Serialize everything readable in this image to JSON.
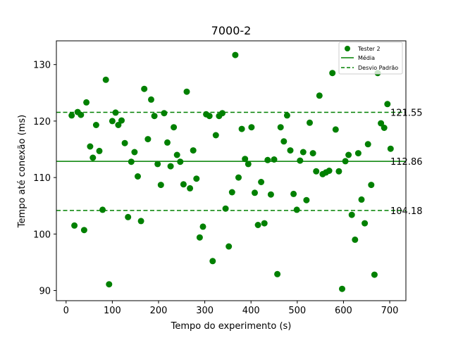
{
  "chart_data": {
    "type": "scatter",
    "title": "7000-2",
    "xlabel": "Tempo do experimento (s)",
    "ylabel": "Tempo até conexão (ms)",
    "xlim": [
      -21,
      735
    ],
    "ylim": [
      88.2,
      134.2
    ],
    "xticks": [
      0,
      100,
      200,
      300,
      400,
      500,
      600,
      700
    ],
    "yticks": [
      90,
      100,
      110,
      120,
      130
    ],
    "grid": false,
    "legend_position": "top-right",
    "colors": {
      "points": "#008000",
      "mean": "#008000",
      "std": "#008000"
    },
    "legend": [
      {
        "label": "Tester 2",
        "kind": "marker"
      },
      {
        "label": "Média",
        "kind": "line"
      },
      {
        "label": "Desvio Padrão",
        "kind": "dashed"
      }
    ],
    "reference_lines": [
      {
        "name": "upper",
        "value": 121.55,
        "label": "121.55",
        "style": "dashed"
      },
      {
        "name": "mean",
        "value": 112.86,
        "label": "112.86",
        "style": "solid"
      },
      {
        "name": "lower",
        "value": 104.18,
        "label": "104.18",
        "style": "dashed"
      }
    ],
    "series": [
      {
        "name": "Tester 2",
        "points": [
          [
            12,
            121.0
          ],
          [
            18,
            101.5
          ],
          [
            25,
            121.6
          ],
          [
            32,
            121.1
          ],
          [
            39,
            100.7
          ],
          [
            44,
            123.3
          ],
          [
            52,
            115.5
          ],
          [
            58,
            113.5
          ],
          [
            65,
            119.3
          ],
          [
            72,
            114.7
          ],
          [
            79,
            104.3
          ],
          [
            86,
            127.3
          ],
          [
            93,
            91.1
          ],
          [
            100,
            120.0
          ],
          [
            107,
            121.5
          ],
          [
            113,
            119.3
          ],
          [
            120,
            120.1
          ],
          [
            127,
            116.1
          ],
          [
            134,
            103.0
          ],
          [
            141,
            112.8
          ],
          [
            148,
            114.5
          ],
          [
            155,
            110.2
          ],
          [
            162,
            102.3
          ],
          [
            169,
            125.7
          ],
          [
            177,
            116.8
          ],
          [
            184,
            123.8
          ],
          [
            191,
            120.9
          ],
          [
            198,
            112.4
          ],
          [
            205,
            108.7
          ],
          [
            212,
            121.4
          ],
          [
            219,
            116.2
          ],
          [
            226,
            112.0
          ],
          [
            233,
            118.9
          ],
          [
            240,
            114.0
          ],
          [
            247,
            112.8
          ],
          [
            254,
            108.8
          ],
          [
            261,
            125.2
          ],
          [
            268,
            108.1
          ],
          [
            275,
            114.8
          ],
          [
            282,
            109.8
          ],
          [
            289,
            99.4
          ],
          [
            296,
            101.3
          ],
          [
            303,
            121.2
          ],
          [
            310,
            120.9
          ],
          [
            317,
            95.2
          ],
          [
            324,
            117.5
          ],
          [
            331,
            120.9
          ],
          [
            338,
            121.4
          ],
          [
            345,
            104.5
          ],
          [
            352,
            97.8
          ],
          [
            359,
            107.4
          ],
          [
            366,
            131.7
          ],
          [
            373,
            110.0
          ],
          [
            380,
            118.6
          ],
          [
            387,
            113.3
          ],
          [
            394,
            112.4
          ],
          [
            401,
            118.9
          ],
          [
            408,
            107.3
          ],
          [
            415,
            101.6
          ],
          [
            422,
            109.2
          ],
          [
            429,
            101.9
          ],
          [
            436,
            113.1
          ],
          [
            443,
            107.0
          ],
          [
            450,
            113.2
          ],
          [
            457,
            92.9
          ],
          [
            464,
            118.9
          ],
          [
            471,
            116.4
          ],
          [
            478,
            121.0
          ],
          [
            485,
            114.8
          ],
          [
            492,
            107.1
          ],
          [
            499,
            104.3
          ],
          [
            506,
            113.0
          ],
          [
            513,
            114.5
          ],
          [
            520,
            106.0
          ],
          [
            527,
            119.7
          ],
          [
            534,
            114.3
          ],
          [
            541,
            111.1
          ],
          [
            548,
            124.5
          ],
          [
            555,
            110.6
          ],
          [
            562,
            110.9
          ],
          [
            569,
            111.2
          ],
          [
            576,
            128.5
          ],
          [
            583,
            118.5
          ],
          [
            590,
            111.1
          ],
          [
            597,
            90.3
          ],
          [
            604,
            112.9
          ],
          [
            611,
            114.0
          ],
          [
            618,
            103.4
          ],
          [
            625,
            99.0
          ],
          [
            632,
            114.3
          ],
          [
            639,
            106.1
          ],
          [
            646,
            101.9
          ],
          [
            653,
            115.9
          ],
          [
            660,
            108.7
          ],
          [
            667,
            92.8
          ],
          [
            674,
            128.5
          ],
          [
            681,
            119.6
          ],
          [
            688,
            118.8
          ],
          [
            695,
            123.0
          ],
          [
            702,
            115.1
          ]
        ]
      }
    ]
  }
}
